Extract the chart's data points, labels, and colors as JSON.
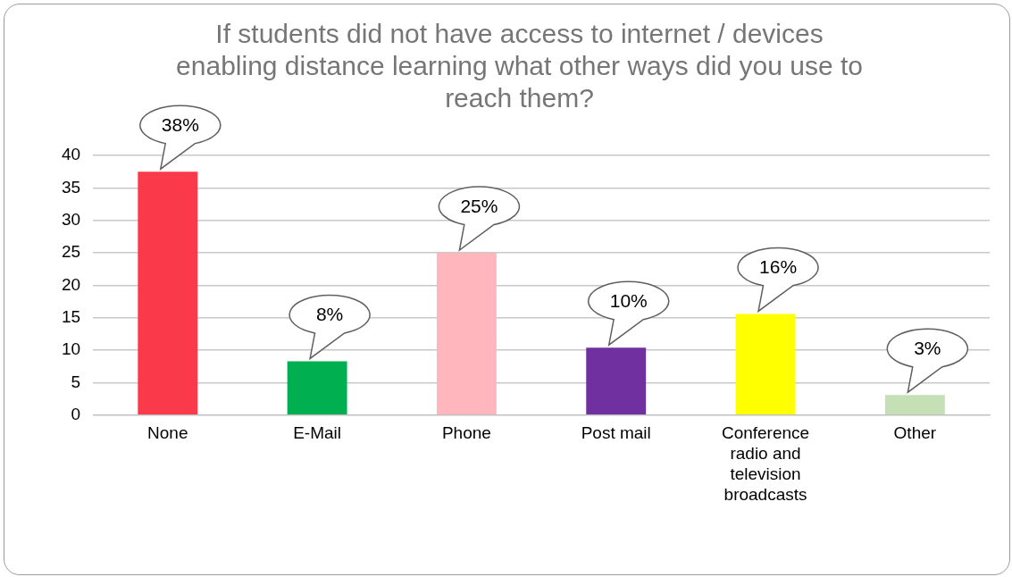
{
  "chart_data": {
    "type": "bar",
    "title": "If students did not have access to internet / devices enabling distance learning what other ways did you use to reach them?",
    "categories": [
      "None",
      "E-Mail",
      "Phone",
      "Post mail",
      "Conference radio and television broadcasts",
      "Other"
    ],
    "values": [
      37.5,
      8.3,
      25,
      10.4,
      15.6,
      3.1
    ],
    "colors": [
      "#fa3a4a",
      "#00b050",
      "#ffb7bd",
      "#7030a0",
      "#ffff00",
      "#c5e0b4"
    ],
    "value_labels": [
      "38%",
      "8%",
      "25%",
      "10%",
      "16%",
      "3%"
    ],
    "ylim": [
      0,
      40
    ],
    "yticks": [
      0,
      5,
      10,
      15,
      20,
      25,
      30,
      35,
      40
    ],
    "grid": "y"
  }
}
